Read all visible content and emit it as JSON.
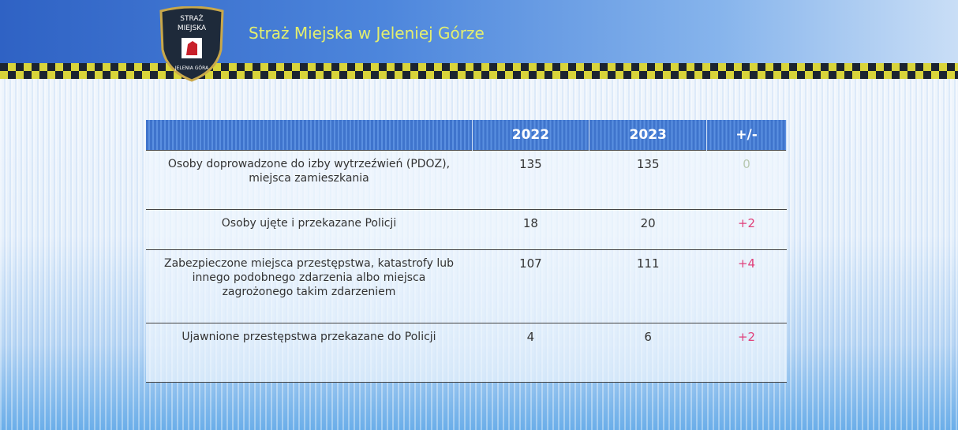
{
  "header": {
    "title": "Straż Miejska w Jeleniej Górze",
    "logo": {
      "top": [
        "STRAŻ",
        "MIEJSKA"
      ],
      "bottom": "JELENIA GÓRA"
    }
  },
  "table": {
    "columns": [
      "2022",
      "2023",
      "+/-"
    ],
    "rows": [
      {
        "label": "Osoby doprowadzone do izby wytrzeźwień (PDOZ), miejsca zamieszkania",
        "cells": [
          "135",
          "135",
          "0"
        ]
      },
      {
        "label": "Osoby ujęte i przekazane Policji",
        "cells": [
          "18",
          "20",
          "+2"
        ]
      },
      {
        "label": "Zabezpieczone miejsca przestępstwa, katastrofy lub innego podobnego zdarzenia albo miejsca zagrożonego takim zdarzeniem",
        "cells": [
          "107",
          "111",
          "+4"
        ]
      },
      {
        "label": "Ujawnione przestępstwa przekazane do Policji",
        "cells": [
          "4",
          "6",
          "+2"
        ]
      }
    ]
  }
}
